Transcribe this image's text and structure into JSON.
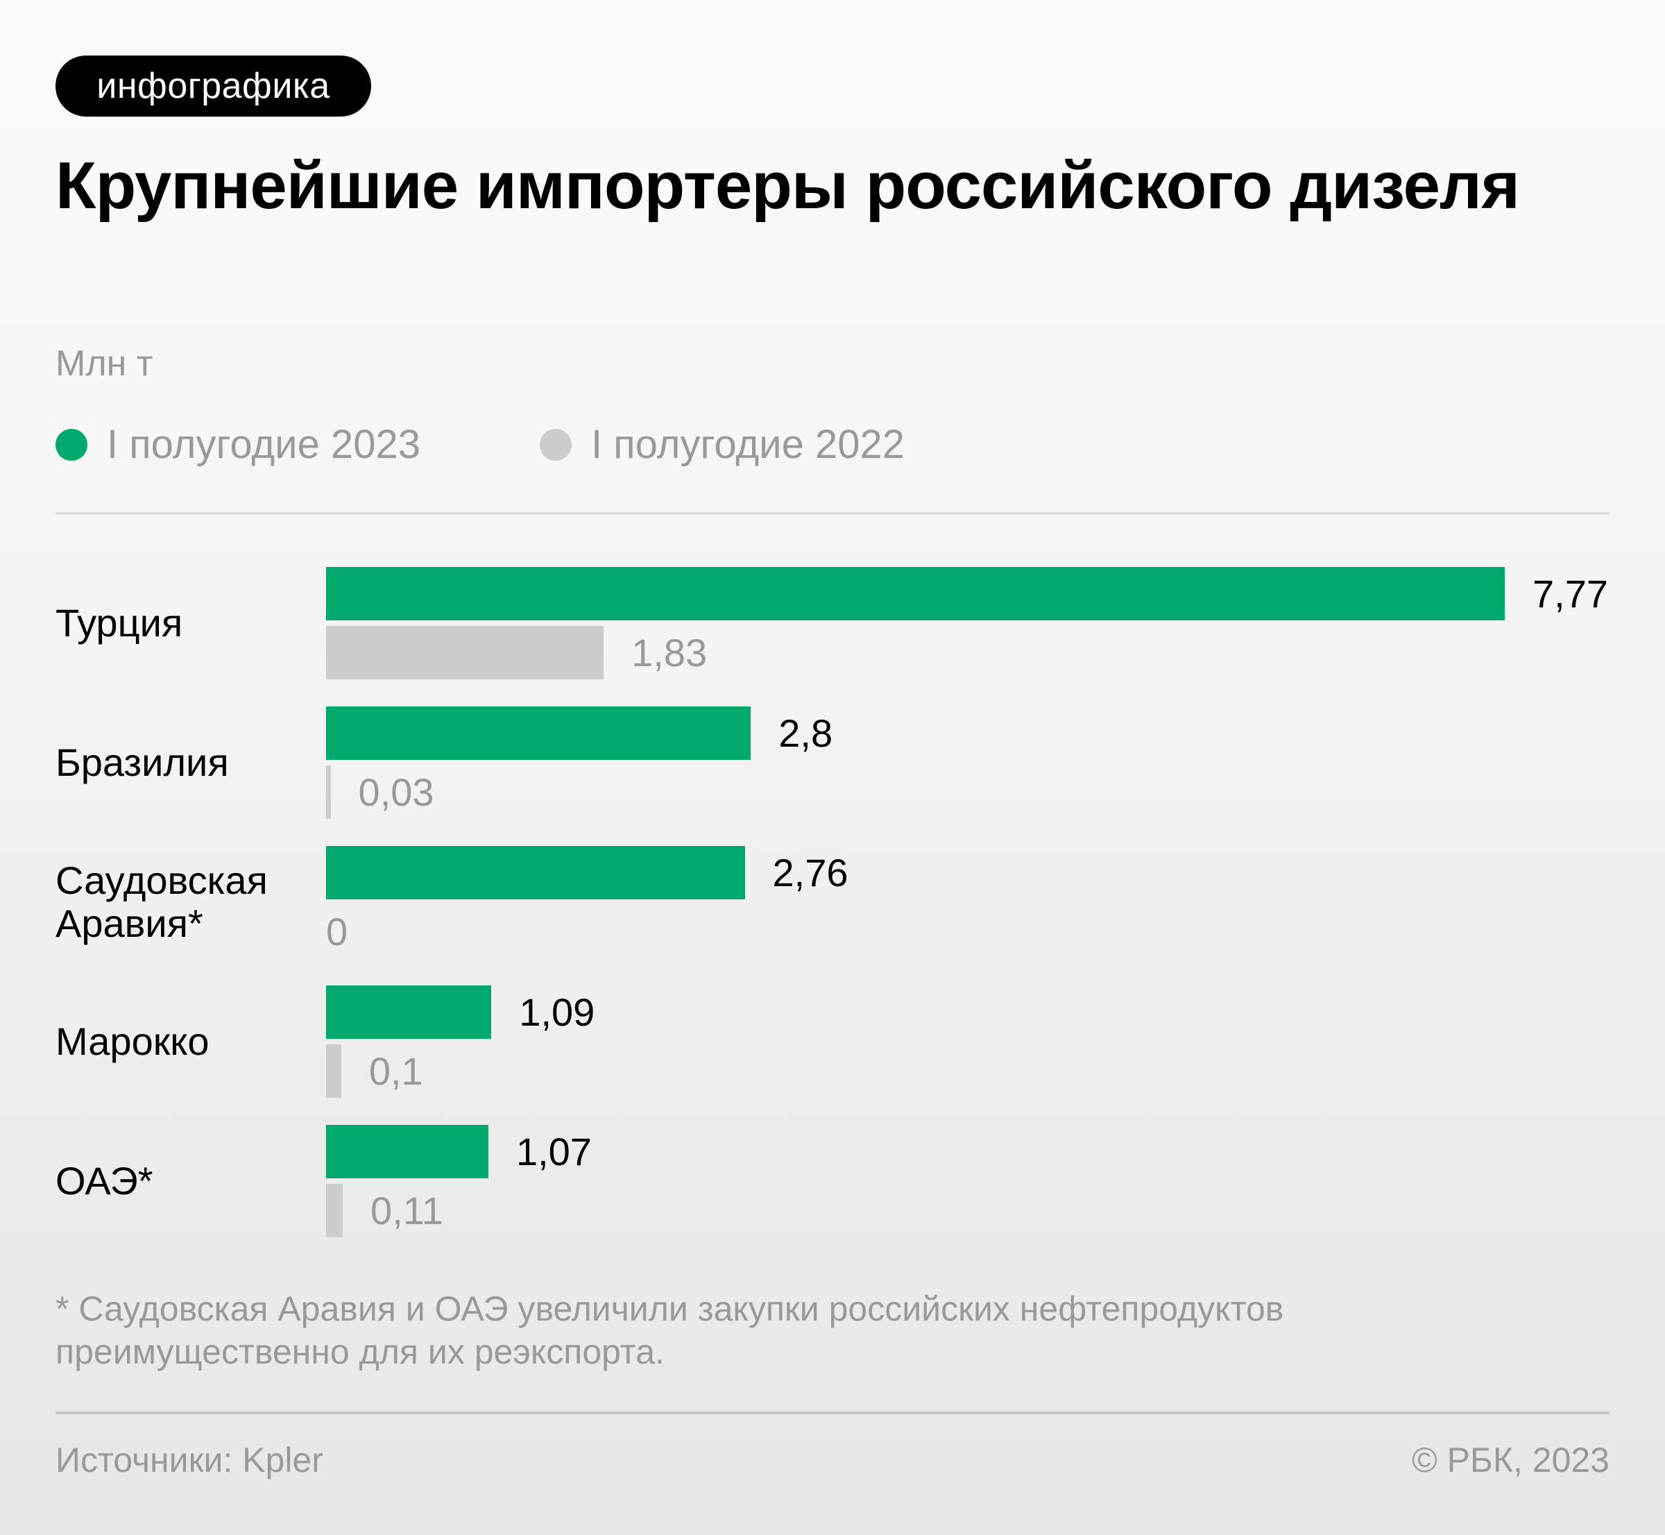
{
  "badge": {
    "label": "инфографика"
  },
  "header": {
    "title": "Крупнейшие импортеры российского дизеля",
    "unit": "Млн т"
  },
  "legend": [
    {
      "label": "I полугодие 2023",
      "color": "#00a86b",
      "icon": "circle-dot-icon"
    },
    {
      "label": "I полугодие 2022",
      "color": "#cccccc",
      "icon": "circle-dot-icon"
    }
  ],
  "chart_data": {
    "type": "bar",
    "orientation": "horizontal",
    "title": "Крупнейшие импортеры российского дизеля",
    "unit": "Млн т",
    "xlabel": "",
    "ylabel": "",
    "grid": false,
    "legend_position": "top-left",
    "categories": [
      "Турция",
      "Бразилия",
      "Саудовская Аравия*",
      "Марокко",
      "ОАЭ*"
    ],
    "category_lines": [
      [
        "Турция"
      ],
      [
        "Бразилия"
      ],
      [
        "Саудовская",
        "Аравия*"
      ],
      [
        "Марокко"
      ],
      [
        "ОАЭ*"
      ]
    ],
    "series": [
      {
        "name": "I полугодие 2023",
        "color": "#00a86b",
        "values": [
          7.77,
          2.8,
          2.76,
          1.09,
          1.07
        ],
        "labels": [
          "7,77",
          "2,8",
          "2,76",
          "1,09",
          "1,07"
        ]
      },
      {
        "name": "I полугодие 2022",
        "color": "#cccccc",
        "values": [
          1.83,
          0.03,
          0,
          0.1,
          0.11
        ],
        "labels": [
          "1,83",
          "0,03",
          "0",
          "0,1",
          "0,11"
        ]
      }
    ],
    "xlim": [
      0,
      7.77
    ]
  },
  "footnote": "* Саудовская Аравия и ОАЭ увеличили закупки российских нефтепродуктов преимущественно для их реэкспорта.",
  "footer": {
    "source": "Источники: Kpler",
    "copyright": "© РБК, 2023"
  }
}
